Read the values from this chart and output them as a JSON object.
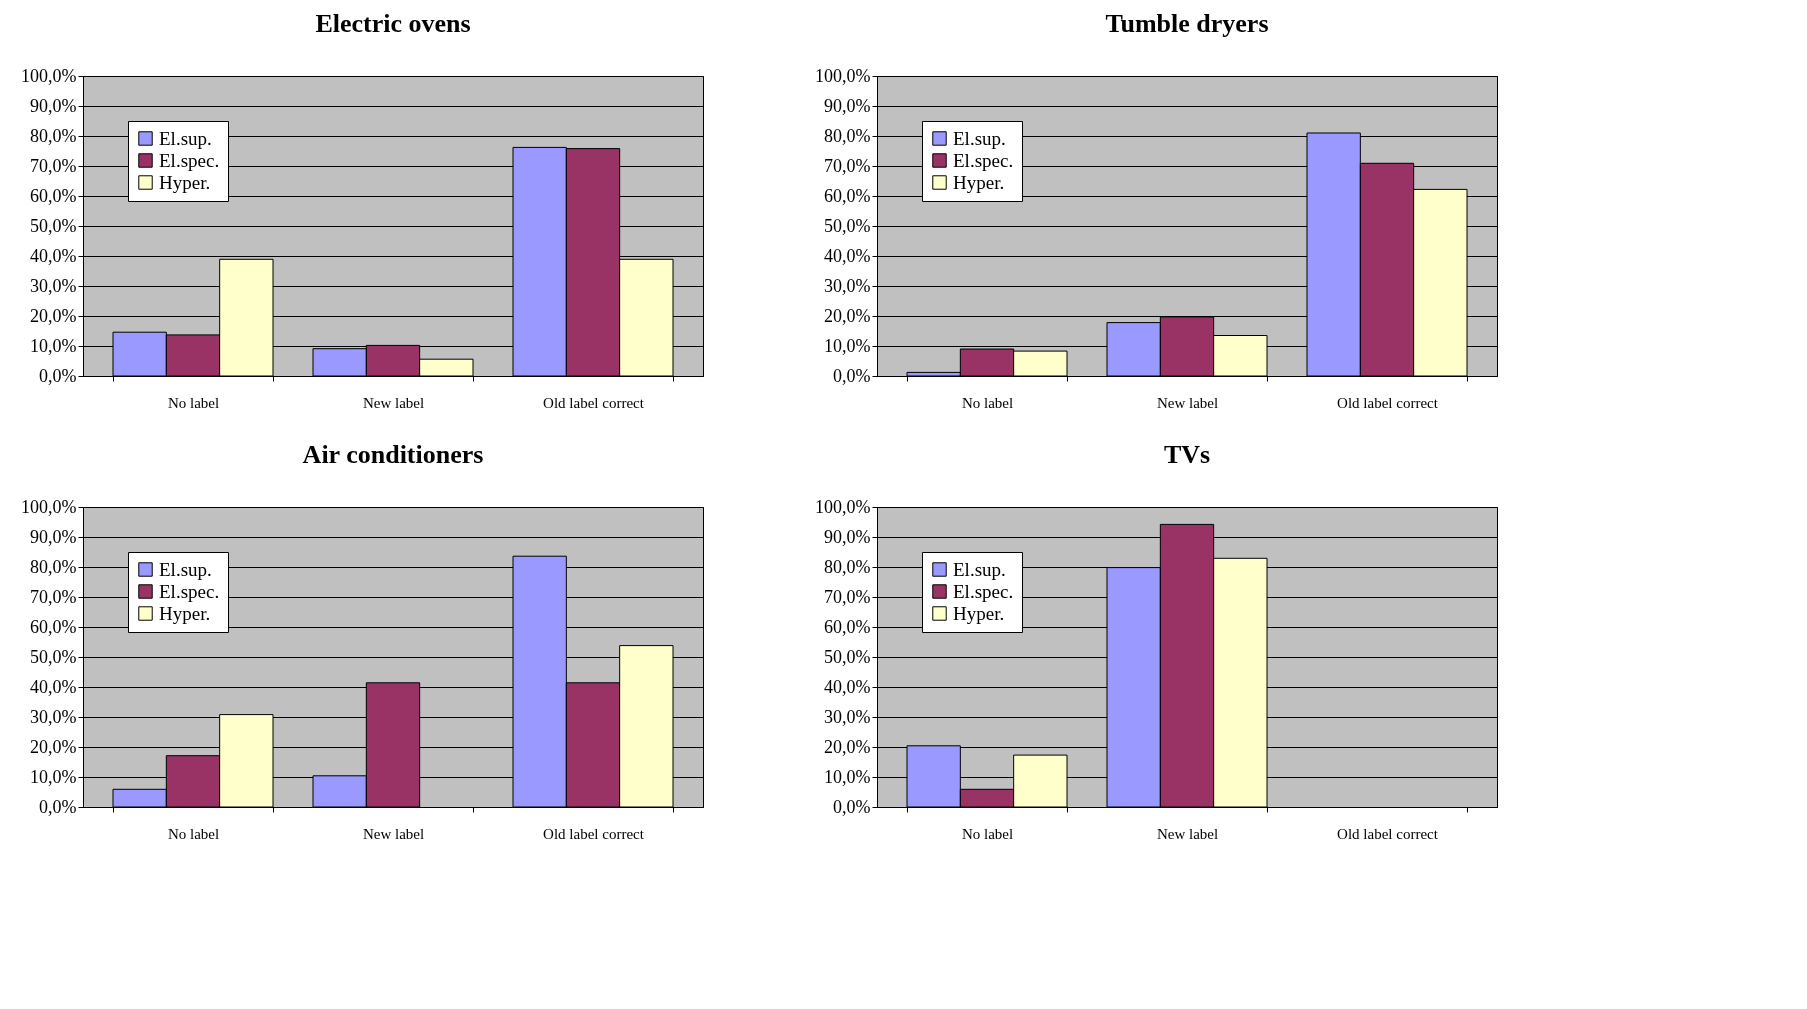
{
  "chart_data": [
    {
      "type": "bar",
      "title": "Electric ovens",
      "categories": [
        "No label",
        "New label",
        "Old label correct"
      ],
      "series": [
        {
          "name": "El.sup.",
          "color": "#9999ff",
          "values": [
            14.6,
            9.1,
            76.2
          ]
        },
        {
          "name": "El.spec.",
          "color": "#993366",
          "values": [
            13.7,
            10.2,
            75.8
          ]
        },
        {
          "name": "Hyper.",
          "color": "#ffffcc",
          "values": [
            38.9,
            5.6,
            38.9
          ]
        }
      ],
      "ylim": [
        0,
        100
      ],
      "yticks": [
        {
          "value": 0,
          "label": "0,0%"
        },
        {
          "value": 10,
          "label": "10,0%"
        },
        {
          "value": 20,
          "label": "20,0%"
        },
        {
          "value": 30,
          "label": "30,0%"
        },
        {
          "value": 40,
          "label": "40,0%"
        },
        {
          "value": 50,
          "label": "50,0%"
        },
        {
          "value": 60,
          "label": "60,0%"
        },
        {
          "value": 70,
          "label": "70,0%"
        },
        {
          "value": 80,
          "label": "80,0%"
        },
        {
          "value": 90,
          "label": "90,0%"
        },
        {
          "value": 100,
          "label": "100,0%"
        }
      ],
      "grid": "y",
      "legend": "top left"
    },
    {
      "type": "bar",
      "title": "Tumble dryers",
      "categories": [
        "No label",
        "New label",
        "Old label correct"
      ],
      "series": [
        {
          "name": "El.sup.",
          "color": "#9999ff",
          "values": [
            1.2,
            17.8,
            81.0
          ]
        },
        {
          "name": "El.spec.",
          "color": "#993366",
          "values": [
            9.0,
            19.7,
            70.9
          ]
        },
        {
          "name": "Hyper.",
          "color": "#ffffcc",
          "values": [
            8.3,
            13.5,
            62.2
          ]
        }
      ],
      "ylim": [
        0,
        100
      ],
      "yticks": [
        {
          "value": 0,
          "label": "0,0%"
        },
        {
          "value": 10,
          "label": "10,0%"
        },
        {
          "value": 20,
          "label": "20,0%"
        },
        {
          "value": 30,
          "label": "30,0%"
        },
        {
          "value": 40,
          "label": "40,0%"
        },
        {
          "value": 50,
          "label": "50,0%"
        },
        {
          "value": 60,
          "label": "60,0%"
        },
        {
          "value": 70,
          "label": "70,0%"
        },
        {
          "value": 80,
          "label": "80,0%"
        },
        {
          "value": 90,
          "label": "90,0%"
        },
        {
          "value": 100,
          "label": "100,0%"
        }
      ],
      "grid": "y",
      "legend": "top left"
    },
    {
      "type": "bar",
      "title": "Air conditioners",
      "categories": [
        "No label",
        "New label",
        "Old label correct"
      ],
      "series": [
        {
          "name": "El.sup.",
          "color": "#9999ff",
          "values": [
            5.9,
            10.4,
            83.6
          ]
        },
        {
          "name": "El.spec.",
          "color": "#993366",
          "values": [
            17.1,
            41.4,
            41.4
          ]
        },
        {
          "name": "Hyper.",
          "color": "#ffffcc",
          "values": [
            30.8,
            null,
            53.8
          ]
        }
      ],
      "ylim": [
        0,
        100
      ],
      "yticks": [
        {
          "value": 0,
          "label": "0,0%"
        },
        {
          "value": 10,
          "label": "10,0%"
        },
        {
          "value": 20,
          "label": "20,0%"
        },
        {
          "value": 30,
          "label": "30,0%"
        },
        {
          "value": 40,
          "label": "40,0%"
        },
        {
          "value": 50,
          "label": "50,0%"
        },
        {
          "value": 60,
          "label": "60,0%"
        },
        {
          "value": 70,
          "label": "70,0%"
        },
        {
          "value": 80,
          "label": "80,0%"
        },
        {
          "value": 90,
          "label": "90,0%"
        },
        {
          "value": 100,
          "label": "100,0%"
        }
      ],
      "grid": "y",
      "legend": "top left"
    },
    {
      "type": "bar",
      "title": "TVs",
      "categories": [
        "No label",
        "New label",
        "Old label correct"
      ],
      "series": [
        {
          "name": "El.sup.",
          "color": "#9999ff",
          "values": [
            20.4,
            79.8,
            null
          ]
        },
        {
          "name": "El.spec.",
          "color": "#993366",
          "values": [
            5.9,
            94.2,
            null
          ]
        },
        {
          "name": "Hyper.",
          "color": "#ffffcc",
          "values": [
            17.3,
            82.9,
            null
          ]
        }
      ],
      "ylim": [
        0,
        100
      ],
      "yticks": [
        {
          "value": 0,
          "label": "0,0%"
        },
        {
          "value": 10,
          "label": "10,0%"
        },
        {
          "value": 20,
          "label": "20,0%"
        },
        {
          "value": 30,
          "label": "30,0%"
        },
        {
          "value": 40,
          "label": "40,0%"
        },
        {
          "value": 50,
          "label": "50,0%"
        },
        {
          "value": 60,
          "label": "60,0%"
        },
        {
          "value": 70,
          "label": "70,0%"
        },
        {
          "value": 80,
          "label": "80,0%"
        },
        {
          "value": 90,
          "label": "90,0%"
        },
        {
          "value": 100,
          "label": "100,0%"
        }
      ],
      "grid": "y",
      "legend": "top left"
    }
  ]
}
